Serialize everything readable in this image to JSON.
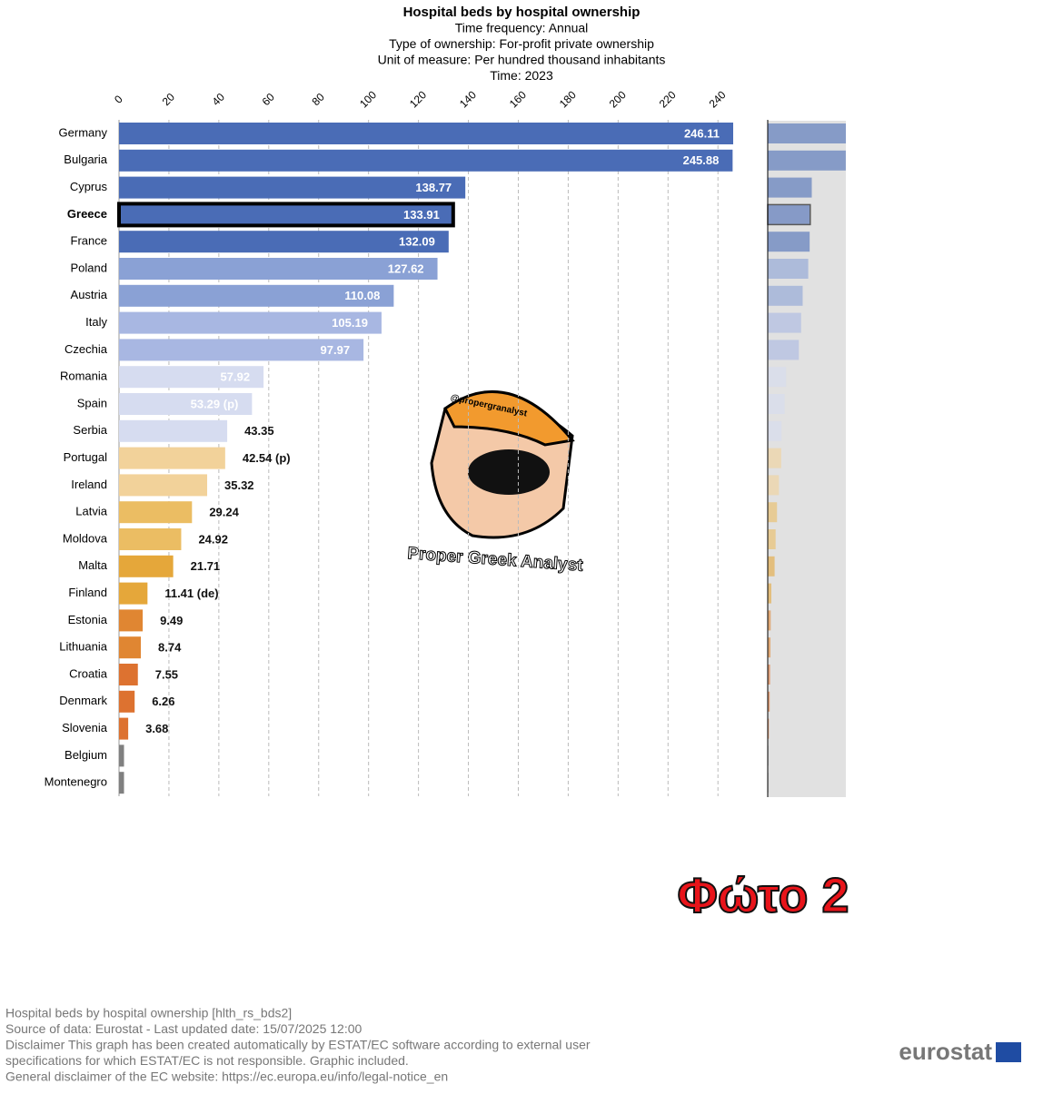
{
  "chart_data": {
    "type": "bar",
    "orientation": "horizontal",
    "title": "Hospital beds by hospital ownership",
    "subtitles": [
      "Time frequency:  Annual",
      "Type of ownership:  For-profit private ownership",
      "Unit of measure:  Per hundred thousand inhabitants",
      "Time:  2023"
    ],
    "categories": [
      "Germany",
      "Bulgaria",
      "Cyprus",
      "Greece",
      "France",
      "Poland",
      "Austria",
      "Italy",
      "Czechia",
      "Romania",
      "Spain",
      "Serbia",
      "Portugal",
      "Ireland",
      "Latvia",
      "Moldova",
      "Malta",
      "Finland",
      "Estonia",
      "Lithuania",
      "Croatia",
      "Denmark",
      "Slovenia",
      "Belgium",
      "Montenegro"
    ],
    "values": [
      246.11,
      245.88,
      138.77,
      133.91,
      132.09,
      127.62,
      110.08,
      105.19,
      97.97,
      57.92,
      53.29,
      43.35,
      42.54,
      35.32,
      29.24,
      24.92,
      21.71,
      11.41,
      9.49,
      8.74,
      7.55,
      6.26,
      3.68,
      2,
      2
    ],
    "value_labels": [
      "246.11",
      "245.88",
      "138.77",
      "133.91",
      "132.09",
      "127.62",
      "110.08",
      "105.19",
      "97.97",
      "57.92",
      "53.29 (p)",
      "43.35",
      "42.54 (p)",
      "35.32",
      "29.24",
      "24.92",
      "21.71",
      "11.41 (de)",
      "9.49",
      "8.74",
      "7.55",
      "6.26",
      "3.68",
      null,
      null
    ],
    "colors": [
      "#4a6cb6",
      "#4a6cb6",
      "#4a6cb6",
      "#4a6cb6",
      "#4a6cb6",
      "#8aa1d5",
      "#8aa1d5",
      "#a8b7e2",
      "#a8b7e2",
      "#d6dcf0",
      "#d6dcf0",
      "#d6dcf0",
      "#f2d29a",
      "#f2d29a",
      "#ebbd63",
      "#ebbd63",
      "#e5a73a",
      "#e5a73a",
      "#e08632",
      "#e08632",
      "#dd7230",
      "#dd7230",
      "#dd7230",
      "#808080",
      "#808080"
    ],
    "highlight": "Greece",
    "xlim": [
      0,
      246.11
    ],
    "xticks": [
      0,
      20,
      40,
      60,
      80,
      100,
      120,
      140,
      160,
      180,
      200,
      220,
      240
    ],
    "grid": true,
    "watermark": {
      "handle": "@propergranalyst",
      "name": "Proper Greek Analyst"
    },
    "stamp": "Φώτο 2"
  },
  "footer": [
    "Hospital beds by hospital ownership [hlth_rs_bds2]",
    "Source of data: Eurostat - Last updated date: 15/07/2025 12:00",
    "Disclaimer This graph has been created automatically by ESTAT/EC software according to external user",
    "specifications for which ESTAT/EC is not responsible. Graphic included.",
    "General disclaimer of the EC website: https://ec.europa.eu/info/legal-notice_en"
  ],
  "logo": "eurostat"
}
